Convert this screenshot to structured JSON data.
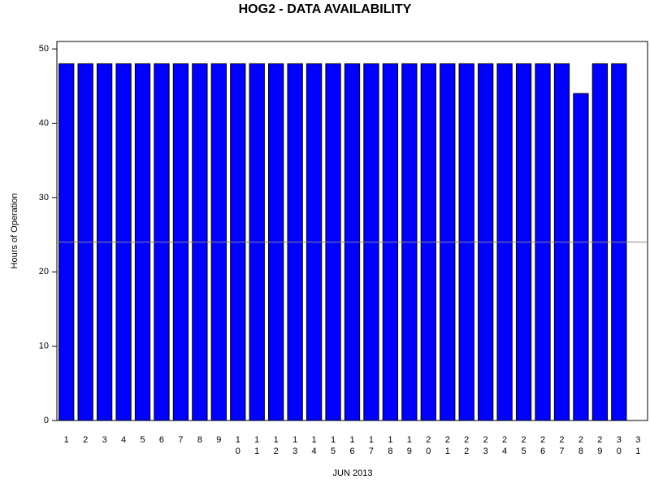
{
  "chart_data": {
    "type": "bar",
    "title": "HOG2 - DATA AVAILABILITY",
    "xlabel": "JUN 2013",
    "ylabel": "Hours of Operation",
    "categories": [
      "1",
      "2",
      "3",
      "4",
      "5",
      "6",
      "7",
      "8",
      "9",
      "10",
      "11",
      "12",
      "13",
      "14",
      "15",
      "16",
      "17",
      "18",
      "19",
      "20",
      "21",
      "22",
      "23",
      "24",
      "25",
      "26",
      "27",
      "28",
      "29",
      "30",
      "31"
    ],
    "values": [
      48,
      48,
      48,
      48,
      48,
      48,
      48,
      48,
      48,
      48,
      48,
      48,
      48,
      48,
      48,
      48,
      48,
      48,
      48,
      48,
      48,
      48,
      48,
      48,
      48,
      48,
      48,
      44,
      48,
      48,
      null
    ],
    "color": "#0000ff",
    "ylim": [
      0,
      51
    ],
    "yticks": [
      0,
      10,
      20,
      30,
      40,
      50
    ],
    "reference_line": 24
  }
}
